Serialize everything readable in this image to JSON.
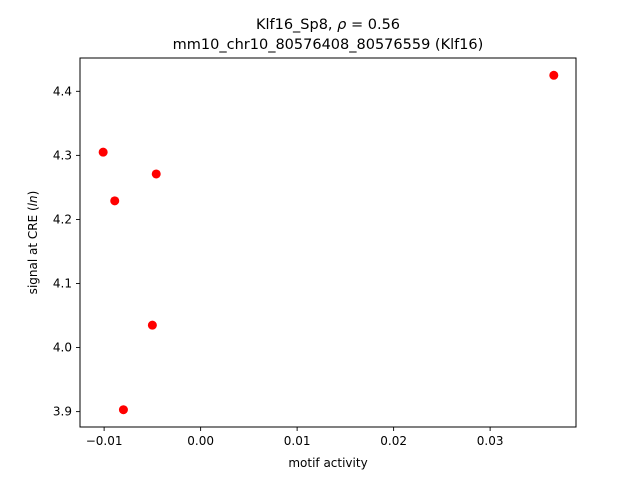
{
  "chart_data": {
    "type": "scatter",
    "title_line1_prefix": "Klf16_Sp8, ",
    "title_line1_rho": "ρ",
    "title_line1_suffix": " = 0.56",
    "title_line2": "mm10_chr10_80576408_80576559 (Klf16)",
    "xlabel": "motif activity",
    "ylabel_prefix": "signal at CRE (",
    "ylabel_italic": "ln",
    "ylabel_suffix": ")",
    "xlim": [
      -0.0125,
      0.0389
    ],
    "ylim": [
      3.876,
      4.452
    ],
    "xticks": [
      -0.01,
      0.0,
      0.01,
      0.02,
      0.03
    ],
    "xtick_labels": [
      "−0.01",
      "0.00",
      "0.01",
      "0.02",
      "0.03"
    ],
    "yticks": [
      3.9,
      4.0,
      4.1,
      4.2,
      4.3,
      4.4
    ],
    "ytick_labels": [
      "3.9",
      "4.0",
      "4.1",
      "4.2",
      "4.3",
      "4.4"
    ],
    "marker_color": "#ff0000",
    "points": [
      {
        "x": 0.0366,
        "y": 4.425
      },
      {
        "x": -0.0101,
        "y": 4.305
      },
      {
        "x": -0.0046,
        "y": 4.271
      },
      {
        "x": -0.0089,
        "y": 4.229
      },
      {
        "x": -0.005,
        "y": 4.035
      },
      {
        "x": -0.008,
        "y": 3.903
      }
    ]
  }
}
